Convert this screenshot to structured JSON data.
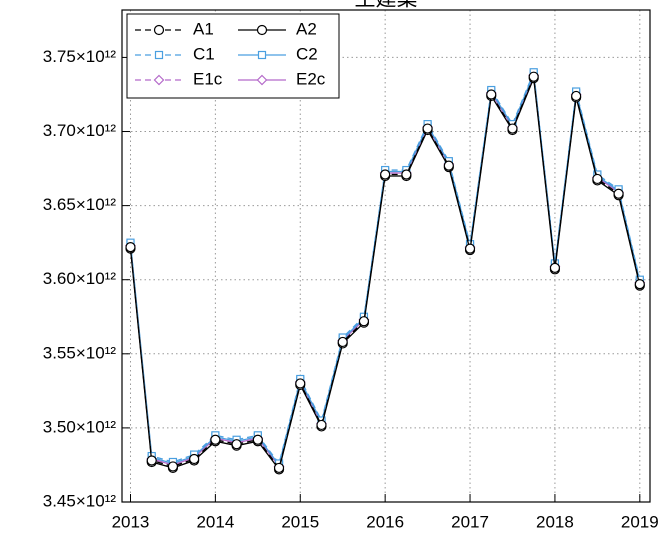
{
  "chart_data": {
    "type": "line",
    "title": "土建業",
    "x": [
      2013,
      2013.25,
      2013.5,
      2013.75,
      2014,
      2014.25,
      2014.5,
      2014.75,
      2015,
      2015.25,
      2015.5,
      2015.75,
      2016,
      2016.25,
      2016.5,
      2016.75,
      2017,
      2017.25,
      2017.5,
      2017.75,
      2018,
      2018.25,
      2018.5,
      2018.75,
      2019
    ],
    "series": [
      {
        "name": "A1",
        "color": "#000000",
        "dash": true,
        "marker": "circle",
        "values": [
          3622000000000.0,
          3478000000000.0,
          3474000000000.0,
          3479000000000.0,
          3492000000000.0,
          3489000000000.0,
          3492000000000.0,
          3473000000000.0,
          3530000000000.0,
          3502000000000.0,
          3558000000000.0,
          3572000000000.0,
          3671000000000.0,
          3671000000000.0,
          3702000000000.0,
          3677000000000.0,
          3621000000000.0,
          3725000000000.0,
          3702000000000.0,
          3737000000000.0,
          3608000000000.0,
          3724000000000.0,
          3668000000000.0,
          3658000000000.0,
          3597000000000.0
        ]
      },
      {
        "name": "A2",
        "color": "#000000",
        "dash": false,
        "marker": "circle",
        "values": [
          3621000000000.0,
          3477000000000.0,
          3473000000000.0,
          3478000000000.0,
          3491000000000.0,
          3488000000000.0,
          3491000000000.0,
          3472000000000.0,
          3529000000000.0,
          3501000000000.0,
          3557000000000.0,
          3571000000000.0,
          3670000000000.0,
          3670000000000.0,
          3701000000000.0,
          3676000000000.0,
          3620000000000.0,
          3724000000000.0,
          3701000000000.0,
          3736000000000.0,
          3607000000000.0,
          3723000000000.0,
          3667000000000.0,
          3657000000000.0,
          3596000000000.0
        ]
      },
      {
        "name": "C1",
        "color": "#4a9fe0",
        "dash": true,
        "marker": "square",
        "values": [
          3625000000000.0,
          3481000000000.0,
          3477000000000.0,
          3482000000000.0,
          3495000000000.0,
          3492000000000.0,
          3495000000000.0,
          3476000000000.0,
          3533000000000.0,
          3505000000000.0,
          3561000000000.0,
          3575000000000.0,
          3674000000000.0,
          3674000000000.0,
          3705000000000.0,
          3680000000000.0,
          3624000000000.0,
          3728000000000.0,
          3705000000000.0,
          3740000000000.0,
          3611000000000.0,
          3727000000000.0,
          3671000000000.0,
          3661000000000.0,
          3600000000000.0
        ]
      },
      {
        "name": "C2",
        "color": "#4a9fe0",
        "dash": false,
        "marker": "square",
        "values": [
          3624000000000.0,
          3480000000000.0,
          3476000000000.0,
          3481000000000.0,
          3494000000000.0,
          3491000000000.0,
          3494000000000.0,
          3475000000000.0,
          3532000000000.0,
          3504000000000.0,
          3560000000000.0,
          3574000000000.0,
          3673000000000.0,
          3673000000000.0,
          3704000000000.0,
          3679000000000.0,
          3623000000000.0,
          3727000000000.0,
          3704000000000.0,
          3739000000000.0,
          3610000000000.0,
          3726000000000.0,
          3670000000000.0,
          3660000000000.0,
          3599000000000.0
        ]
      },
      {
        "name": "E1c",
        "color": "#b469c9",
        "dash": true,
        "marker": "diamond",
        "values": [
          3623000000000.0,
          3479000000000.0,
          3475000000000.0,
          3480000000000.0,
          3493000000000.0,
          3490000000000.0,
          3493000000000.0,
          3474000000000.0,
          3531000000000.0,
          3503000000000.0,
          3559000000000.0,
          3573000000000.0,
          3672000000000.0,
          3672000000000.0,
          3703000000000.0,
          3678000000000.0,
          3622000000000.0,
          3726000000000.0,
          3703000000000.0,
          3738000000000.0,
          3609000000000.0,
          3725000000000.0,
          3669000000000.0,
          3659000000000.0,
          3598000000000.0
        ]
      },
      {
        "name": "E2c",
        "color": "#b469c9",
        "dash": false,
        "marker": "diamond",
        "values": [
          3623000000000.0,
          3479000000000.0,
          3475000000000.0,
          3480000000000.0,
          3493000000000.0,
          3490000000000.0,
          3493000000000.0,
          3474000000000.0,
          3531000000000.0,
          3503000000000.0,
          3559000000000.0,
          3573000000000.0,
          3672000000000.0,
          3672000000000.0,
          3703000000000.0,
          3678000000000.0,
          3622000000000.0,
          3726000000000.0,
          3703000000000.0,
          3738000000000.0,
          3609000000000.0,
          3725000000000.0,
          3669000000000.0,
          3659000000000.0,
          3598000000000.0
        ]
      }
    ],
    "xlim": [
      2012.9,
      2019.12
    ],
    "xticks": [
      2013,
      2014,
      2015,
      2016,
      2017,
      2018,
      2019
    ],
    "ylim": [
      3450000000000.0,
      3782000000000.0
    ],
    "yticks": [
      {
        "value": 3450000000000.0,
        "label": "3.45×10¹²"
      },
      {
        "value": 3500000000000.0,
        "label": "3.50×10¹²"
      },
      {
        "value": 3550000000000.0,
        "label": "3.55×10¹²"
      },
      {
        "value": 3600000000000.0,
        "label": "3.60×10¹²"
      },
      {
        "value": 3650000000000.0,
        "label": "3.65×10¹²"
      },
      {
        "value": 3700000000000.0,
        "label": "3.70×10¹²"
      },
      {
        "value": 3750000000000.0,
        "label": "3.75×10¹²"
      }
    ],
    "grid": true,
    "legend": "upper-left"
  }
}
